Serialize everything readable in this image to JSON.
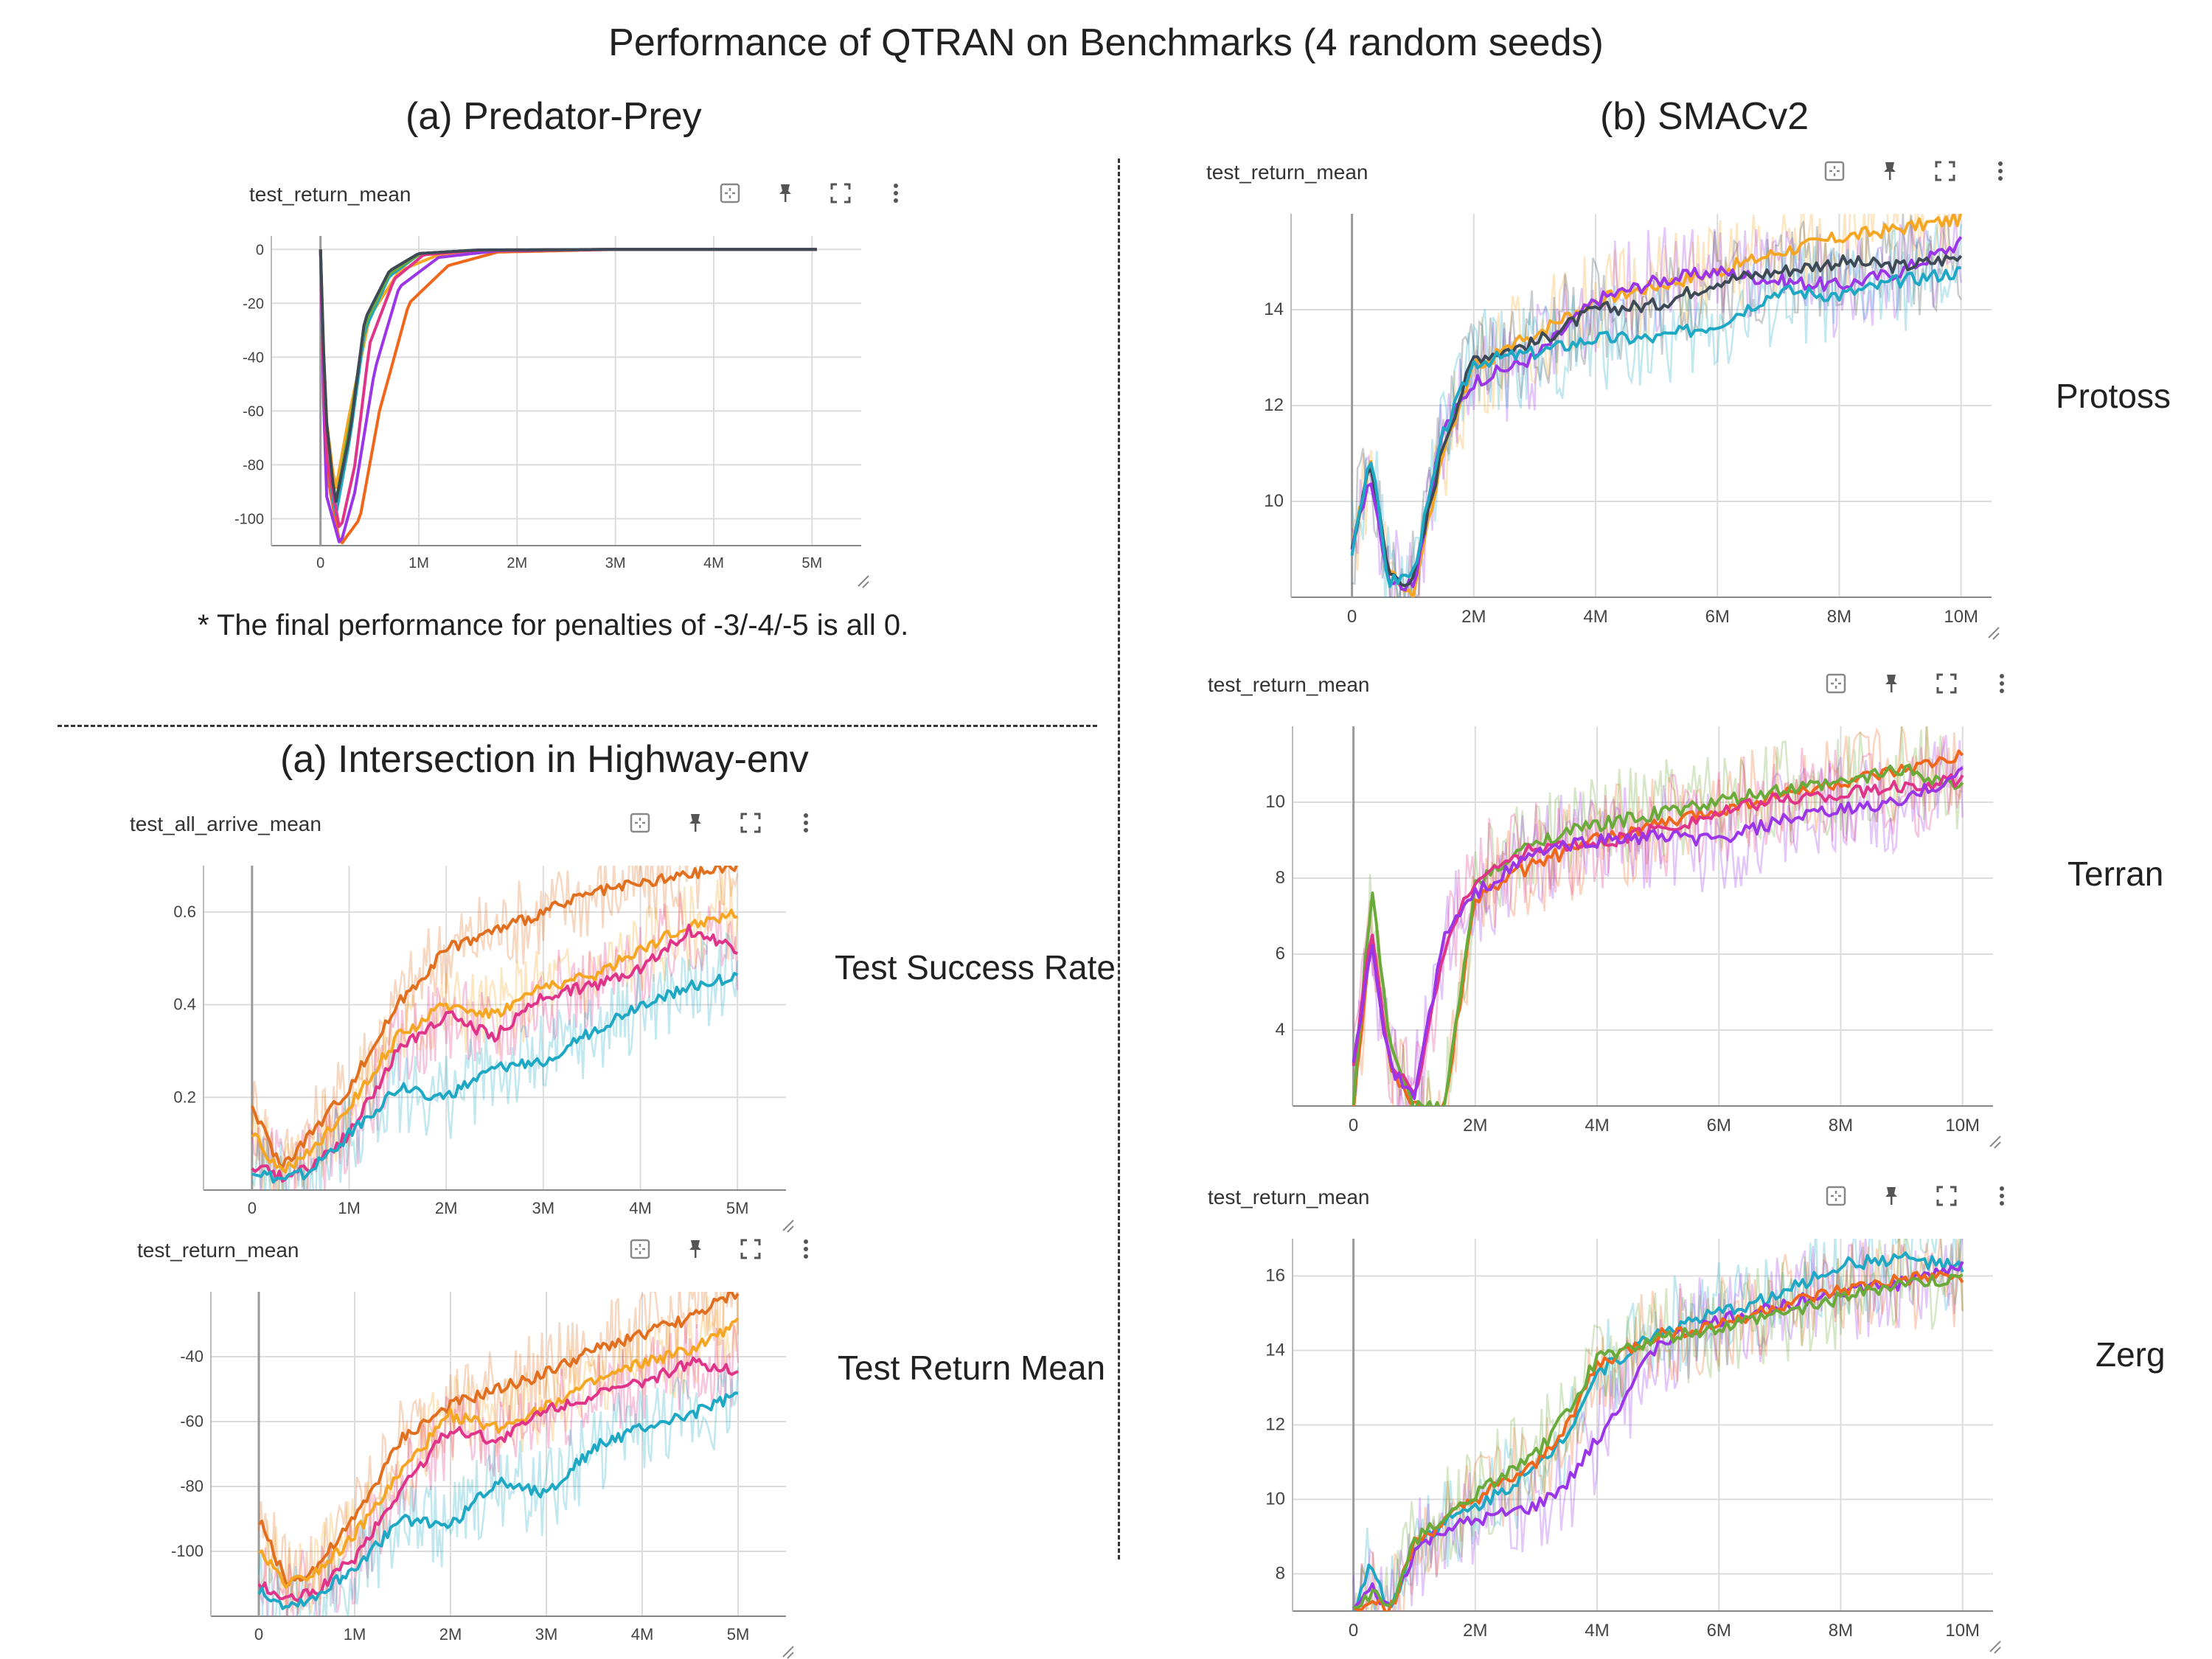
{
  "title": "Performance of QTRAN on Benchmarks (4 random seeds)",
  "sections": {
    "a1": "(a) Predator-Prey",
    "b": "(b) SMACv2",
    "a2": "(a) Intersection in Highway-env"
  },
  "note": "* The final performance for penalties of -3/-4/-5 is all 0.",
  "side_labels": {
    "success": "Test Success Rate",
    "return": "Test Return Mean",
    "protoss": "Protoss",
    "terran": "Terran",
    "zerg": "Zerg"
  },
  "toolbar_icons": [
    "fit-to-data-icon",
    "pin-icon",
    "fullscreen-icon",
    "more-vert-icon"
  ],
  "colors": {
    "orange": "#f5a623",
    "dark_orange": "#e07020",
    "pink": "#e0338a",
    "teal": "#1fa8c4",
    "purple": "#9b35e8",
    "dark_gray": "#3d4a55",
    "green": "#6aaa3a",
    "red_orange": "#f0661a"
  },
  "chart_data": [
    {
      "id": "pp",
      "type": "line",
      "title": "test_return_mean",
      "x_ticks": [
        "0",
        "1M",
        "2M",
        "3M",
        "4M",
        "5M"
      ],
      "x_tick_values": [
        0,
        1,
        2,
        3,
        4,
        5
      ],
      "xlim": [
        -0.5,
        5.5
      ],
      "y_ticks": [
        "0",
        "-20",
        "-40",
        "-60",
        "-80",
        "-100"
      ],
      "y_tick_values": [
        0,
        -20,
        -40,
        -60,
        -80,
        -100
      ],
      "ylim": [
        -110,
        5
      ],
      "series": [
        {
          "color": "#f5a623",
          "x": [
            0.0,
            0.05,
            0.15,
            0.3,
            0.5,
            0.8,
            1.2,
            1.8,
            3,
            5.05
          ],
          "y": [
            0,
            -60,
            -90,
            -60,
            -25,
            -8,
            -2,
            -0.3,
            0,
            0
          ]
        },
        {
          "color": "#f0661a",
          "x": [
            0.0,
            0.05,
            0.2,
            0.4,
            0.6,
            0.9,
            1.3,
            1.8,
            3,
            5.05
          ],
          "y": [
            0,
            -80,
            -110,
            -100,
            -60,
            -20,
            -6,
            -1,
            0,
            0
          ]
        },
        {
          "color": "#9b35e8",
          "x": [
            0.0,
            0.05,
            0.2,
            0.35,
            0.55,
            0.8,
            1.2,
            1.8,
            3,
            5.05
          ],
          "y": [
            0,
            -90,
            -110,
            -90,
            -45,
            -14,
            -3,
            -0.5,
            0,
            0
          ]
        },
        {
          "color": "#1fa8c4",
          "x": [
            0.0,
            0.05,
            0.15,
            0.3,
            0.45,
            0.7,
            1.0,
            1.6,
            3,
            5.05
          ],
          "y": [
            0,
            -70,
            -100,
            -70,
            -30,
            -10,
            -2,
            -0.3,
            0,
            0
          ]
        },
        {
          "color": "#6aaa3a",
          "x": [
            0.0,
            0.05,
            0.15,
            0.3,
            0.45,
            0.7,
            1.0,
            1.6,
            3,
            5.05
          ],
          "y": [
            0,
            -65,
            -95,
            -65,
            -28,
            -9,
            -2,
            -0.3,
            0,
            0
          ]
        },
        {
          "color": "#e0338a",
          "x": [
            0.0,
            0.05,
            0.2,
            0.35,
            0.5,
            0.75,
            1.05,
            1.6,
            3,
            5.05
          ],
          "y": [
            0,
            -75,
            -105,
            -80,
            -35,
            -11,
            -2,
            -0.3,
            0,
            0
          ]
        },
        {
          "color": "#3d4a55",
          "x": [
            0.0,
            0.05,
            0.15,
            0.3,
            0.45,
            0.7,
            1.0,
            1.6,
            3,
            5.05
          ],
          "y": [
            0,
            -60,
            -95,
            -68,
            -26,
            -8,
            -1.5,
            -0.2,
            0,
            0
          ]
        }
      ]
    },
    {
      "id": "hw_success",
      "type": "line",
      "title": "test_all_arrive_mean",
      "x_ticks": [
        "0",
        "1M",
        "2M",
        "3M",
        "4M",
        "5M"
      ],
      "x_tick_values": [
        0,
        1,
        2,
        3,
        4,
        5
      ],
      "xlim": [
        -0.5,
        5.5
      ],
      "y_ticks": [
        "0.2",
        "0.4",
        "0.6"
      ],
      "y_tick_values": [
        0.2,
        0.4,
        0.6
      ],
      "ylim": [
        0,
        0.7
      ],
      "series": [
        {
          "color": "#e07020",
          "x": [
            0,
            0.3,
            0.6,
            1.0,
            1.5,
            2.0,
            2.5,
            3.0,
            3.5,
            4.0,
            4.5,
            5.0
          ],
          "y": [
            0.18,
            0.05,
            0.12,
            0.22,
            0.4,
            0.52,
            0.56,
            0.6,
            0.64,
            0.66,
            0.68,
            0.7
          ]
        },
        {
          "color": "#f5a623",
          "x": [
            0,
            0.3,
            0.6,
            1.0,
            1.5,
            2.0,
            2.5,
            3.0,
            3.5,
            4.0,
            4.5,
            5.0
          ],
          "y": [
            0.12,
            0.04,
            0.08,
            0.18,
            0.33,
            0.4,
            0.38,
            0.44,
            0.46,
            0.52,
            0.57,
            0.6
          ]
        },
        {
          "color": "#e0338a",
          "x": [
            0,
            0.3,
            0.6,
            1.0,
            1.5,
            2.0,
            2.5,
            3.0,
            3.5,
            4.0,
            4.5,
            5.0
          ],
          "y": [
            0.05,
            0.03,
            0.05,
            0.12,
            0.3,
            0.38,
            0.33,
            0.42,
            0.44,
            0.48,
            0.56,
            0.52
          ]
        },
        {
          "color": "#1fa8c4",
          "x": [
            0,
            0.3,
            0.6,
            1.0,
            1.5,
            2.0,
            2.5,
            3.0,
            3.5,
            4.0,
            4.5,
            5.0
          ],
          "y": [
            0.04,
            0.02,
            0.04,
            0.12,
            0.22,
            0.2,
            0.26,
            0.28,
            0.34,
            0.4,
            0.44,
            0.46
          ]
        }
      ]
    },
    {
      "id": "hw_return",
      "type": "line",
      "title": "test_return_mean",
      "x_ticks": [
        "0",
        "1M",
        "2M",
        "3M",
        "4M",
        "5M"
      ],
      "x_tick_values": [
        0,
        1,
        2,
        3,
        4,
        5
      ],
      "xlim": [
        -0.5,
        5.5
      ],
      "y_ticks": [
        "-40",
        "-60",
        "-80",
        "-100"
      ],
      "y_tick_values": [
        -40,
        -60,
        -80,
        -100
      ],
      "ylim": [
        -120,
        -20
      ],
      "series": [
        {
          "color": "#e07020",
          "x": [
            0,
            0.3,
            0.6,
            1.0,
            1.5,
            2.0,
            2.5,
            3.0,
            3.5,
            4.0,
            4.5,
            5.0
          ],
          "y": [
            -90,
            -110,
            -105,
            -90,
            -65,
            -55,
            -50,
            -45,
            -38,
            -33,
            -28,
            -20
          ]
        },
        {
          "color": "#f5a623",
          "x": [
            0,
            0.3,
            0.6,
            1.0,
            1.5,
            2.0,
            2.5,
            3.0,
            3.5,
            4.0,
            4.5,
            5.0
          ],
          "y": [
            -100,
            -110,
            -106,
            -95,
            -75,
            -58,
            -62,
            -55,
            -48,
            -42,
            -38,
            -30
          ]
        },
        {
          "color": "#e0338a",
          "x": [
            0,
            0.3,
            0.6,
            1.0,
            1.5,
            2.0,
            2.5,
            3.0,
            3.5,
            4.0,
            4.5,
            5.0
          ],
          "y": [
            -110,
            -115,
            -112,
            -102,
            -80,
            -62,
            -66,
            -56,
            -52,
            -48,
            -42,
            -44
          ]
        },
        {
          "color": "#1fa8c4",
          "x": [
            0,
            0.3,
            0.6,
            1.0,
            1.5,
            2.0,
            2.5,
            3.0,
            3.5,
            4.0,
            4.5,
            5.0
          ],
          "y": [
            -112,
            -117,
            -114,
            -105,
            -90,
            -92,
            -78,
            -82,
            -68,
            -62,
            -58,
            -52
          ]
        }
      ]
    },
    {
      "id": "protoss",
      "type": "line",
      "title": "test_return_mean",
      "x_ticks": [
        "0",
        "2M",
        "4M",
        "6M",
        "8M",
        "10M"
      ],
      "x_tick_values": [
        0,
        2,
        4,
        6,
        8,
        10
      ],
      "xlim": [
        -1,
        10.5
      ],
      "y_ticks": [
        "10",
        "12",
        "14"
      ],
      "y_tick_values": [
        10,
        12,
        14
      ],
      "ylim": [
        8,
        16
      ],
      "series": [
        {
          "color": "#f5a623",
          "x": [
            0,
            0.3,
            0.6,
            1.0,
            1.5,
            2.0,
            3.0,
            4.0,
            5.0,
            6.0,
            7.0,
            8.0,
            9.0,
            10.0
          ],
          "y": [
            9,
            10.8,
            8.6,
            8,
            11,
            12.8,
            13.5,
            14.2,
            14.5,
            14.8,
            15.2,
            15.5,
            15.7,
            15.9
          ]
        },
        {
          "color": "#9b35e8",
          "x": [
            0,
            0.3,
            0.6,
            1.0,
            1.5,
            2.0,
            3.0,
            4.0,
            5.0,
            6.0,
            7.0,
            8.0,
            9.0,
            10.0
          ],
          "y": [
            9,
            10.6,
            8.4,
            8.2,
            11.5,
            12.5,
            13.0,
            14.2,
            14.6,
            14.8,
            14.6,
            14.5,
            14.8,
            15.4
          ]
        },
        {
          "color": "#3d4a55",
          "x": [
            0,
            0.3,
            0.6,
            1.0,
            1.5,
            2.0,
            3.0,
            4.0,
            5.0,
            6.0,
            7.0,
            8.0,
            9.0,
            10.0
          ],
          "y": [
            9,
            10.9,
            8.5,
            8.3,
            11.2,
            13.0,
            13.3,
            14.0,
            14.1,
            14.6,
            14.8,
            15.0,
            14.9,
            15.1
          ]
        },
        {
          "color": "#1fa8c4",
          "x": [
            0,
            0.3,
            0.6,
            1.0,
            1.5,
            2.0,
            3.0,
            4.0,
            5.0,
            6.0,
            7.0,
            8.0,
            9.0,
            10.0
          ],
          "y": [
            9,
            11.0,
            8.3,
            8.5,
            11.4,
            12.9,
            13.1,
            13.4,
            13.4,
            13.7,
            14.4,
            14.3,
            14.6,
            14.8
          ]
        }
      ]
    },
    {
      "id": "terran",
      "type": "line",
      "title": "test_return_mean",
      "x_ticks": [
        "0",
        "2M",
        "4M",
        "6M",
        "8M",
        "10M"
      ],
      "x_tick_values": [
        0,
        2,
        4,
        6,
        8,
        10
      ],
      "xlim": [
        -1,
        10.5
      ],
      "y_ticks": [
        "4",
        "6",
        "8",
        "10"
      ],
      "y_tick_values": [
        4,
        6,
        8,
        10
      ],
      "ylim": [
        2,
        12
      ],
      "series": [
        {
          "color": "#f0661a",
          "x": [
            0,
            0.3,
            0.6,
            1.0,
            1.5,
            2.0,
            3.0,
            4.0,
            5.0,
            6.0,
            7.0,
            8.0,
            9.0,
            10.0
          ],
          "y": [
            2,
            6.5,
            3,
            2,
            2,
            7.5,
            8.4,
            9.0,
            9.4,
            9.8,
            10.2,
            10.5,
            10.8,
            11.2
          ]
        },
        {
          "color": "#6aaa3a",
          "x": [
            0,
            0.3,
            0.6,
            1.0,
            1.5,
            2.0,
            3.0,
            4.0,
            5.0,
            6.0,
            7.0,
            8.0,
            9.0,
            10.0
          ],
          "y": [
            2,
            7.8,
            3.5,
            2,
            2,
            7.8,
            9.0,
            9.4,
            9.7,
            10.0,
            10.3,
            10.5,
            10.9,
            10.4
          ]
        },
        {
          "color": "#e0338a",
          "x": [
            0,
            0.3,
            0.6,
            1.0,
            1.5,
            2.0,
            3.0,
            4.0,
            5.0,
            6.0,
            7.0,
            8.0,
            9.0,
            10.0
          ],
          "y": [
            3,
            6.6,
            3.2,
            2.2,
            6.2,
            8.0,
            8.8,
            8.9,
            9.3,
            9.7,
            10.1,
            10.2,
            10.4,
            10.6
          ]
        },
        {
          "color": "#9b35e8",
          "x": [
            0,
            0.3,
            0.6,
            1.0,
            1.5,
            2.0,
            3.0,
            4.0,
            5.0,
            6.0,
            7.0,
            8.0,
            9.0,
            10.0
          ],
          "y": [
            3,
            6.2,
            3,
            2.3,
            6.5,
            7.6,
            8.7,
            9.0,
            9.1,
            9.0,
            9.5,
            9.8,
            10.0,
            10.8
          ]
        }
      ]
    },
    {
      "id": "zerg",
      "type": "line",
      "title": "test_return_mean",
      "x_ticks": [
        "0",
        "2M",
        "4M",
        "6M",
        "8M",
        "10M"
      ],
      "x_tick_values": [
        0,
        2,
        4,
        6,
        8,
        10
      ],
      "xlim": [
        -1,
        10.5
      ],
      "y_ticks": [
        "8",
        "10",
        "12",
        "14",
        "16"
      ],
      "y_tick_values": [
        8,
        10,
        12,
        14,
        16
      ],
      "ylim": [
        7,
        17
      ],
      "series": [
        {
          "color": "#1fa8c4",
          "x": [
            0,
            0.3,
            0.6,
            1.0,
            1.5,
            2.0,
            3.0,
            3.5,
            4.0,
            5.0,
            6.0,
            7.0,
            8.0,
            9.0,
            10.0
          ],
          "y": [
            7,
            8.3,
            7,
            8.8,
            9.4,
            9.8,
            10.8,
            11.8,
            13.4,
            14.5,
            15.0,
            15.5,
            16.3,
            16.5,
            16.2
          ]
        },
        {
          "color": "#9b35e8",
          "x": [
            0,
            0.3,
            0.6,
            1.0,
            1.5,
            2.0,
            3.0,
            3.5,
            4.0,
            5.0,
            6.0,
            7.0,
            8.0,
            9.0,
            10.0
          ],
          "y": [
            7,
            7.6,
            7,
            8.6,
            9.2,
            9.4,
            9.8,
            10.4,
            11.6,
            14.2,
            14.8,
            15.2,
            15.6,
            15.8,
            16.3
          ]
        },
        {
          "color": "#f0661a",
          "x": [
            0,
            0.3,
            0.6,
            1.0,
            1.5,
            2.0,
            3.0,
            3.5,
            4.0,
            5.0,
            6.0,
            7.0,
            8.0,
            9.0,
            10.0
          ],
          "y": [
            7,
            7.4,
            7,
            8.8,
            9.4,
            10.0,
            10.9,
            12.0,
            13.6,
            14.4,
            14.7,
            15.2,
            15.6,
            15.9,
            16.0
          ]
        },
        {
          "color": "#6aaa3a",
          "x": [
            0,
            0.3,
            0.6,
            1.0,
            1.5,
            2.0,
            3.0,
            3.5,
            4.0,
            5.0,
            6.0,
            7.0,
            8.0,
            9.0,
            10.0
          ],
          "y": [
            7,
            7.5,
            7,
            8.9,
            9.5,
            10.1,
            11.2,
            12.3,
            13.8,
            14.3,
            14.6,
            15.0,
            15.4,
            15.8,
            15.9
          ]
        }
      ]
    }
  ]
}
